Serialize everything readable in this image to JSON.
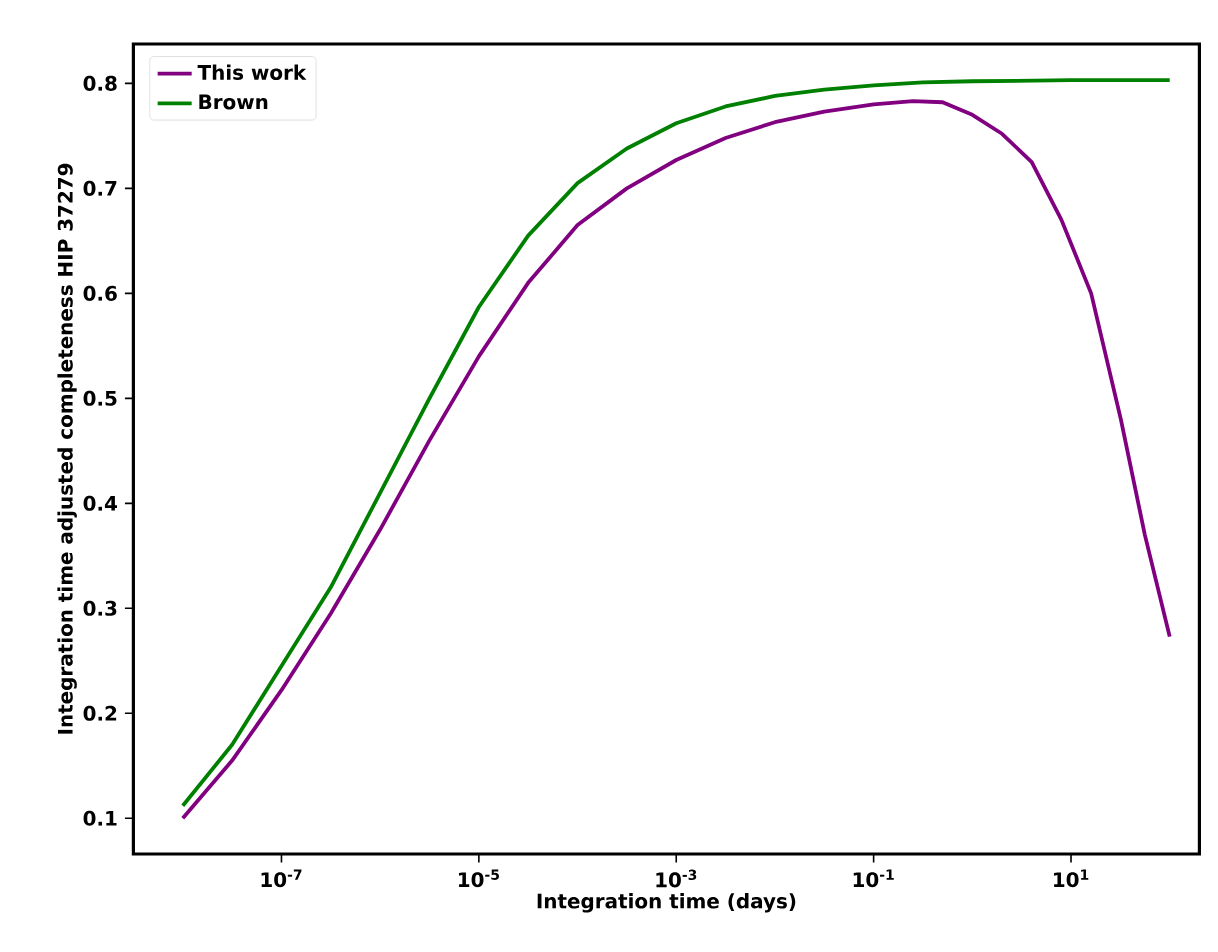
{
  "chart_data": {
    "type": "line",
    "xlabel": "Integration time (days)",
    "ylabel": "Integration time adjusted completeness HIP 37279",
    "log": "x",
    "xlim": [
      3.16e-09,
      200
    ],
    "ylim": [
      0.066,
      0.8375
    ],
    "xticks": [
      {
        "value": 1e-07,
        "label": "10$^{-7}$"
      },
      {
        "value": 1e-05,
        "label": "10$^{-5}$"
      },
      {
        "value": 0.001,
        "label": "10$^{-3}$"
      },
      {
        "value": 0.1,
        "label": "10$^{-1}$"
      },
      {
        "value": 10,
        "label": "10$^{1}$"
      }
    ],
    "yticks": [
      0.1,
      0.2,
      0.3,
      0.4,
      0.5,
      0.6,
      0.7,
      0.8
    ],
    "legend": "top left",
    "grid": false,
    "series": [
      {
        "name": "This work",
        "color": "#800080",
        "x": [
          1e-08,
          3.16e-08,
          1e-07,
          3.16e-07,
          1e-06,
          3.16e-06,
          1e-05,
          3.16e-05,
          0.0001,
          0.000316,
          0.001,
          0.00316,
          0.01,
          0.0316,
          0.1,
          0.25,
          0.5,
          1,
          2,
          4,
          8,
          16,
          32,
          56,
          100
        ],
        "values": [
          0.1,
          0.155,
          0.222,
          0.295,
          0.375,
          0.46,
          0.54,
          0.61,
          0.665,
          0.7,
          0.727,
          0.748,
          0.763,
          0.773,
          0.78,
          0.783,
          0.782,
          0.77,
          0.752,
          0.725,
          0.67,
          0.6,
          0.48,
          0.37,
          0.273
        ]
      },
      {
        "name": "Brown",
        "color": "#008000",
        "x": [
          1e-08,
          3.16e-08,
          1e-07,
          3.16e-07,
          1e-06,
          3.16e-06,
          1e-05,
          3.16e-05,
          0.0001,
          0.000316,
          0.001,
          0.00316,
          0.01,
          0.0316,
          0.1,
          0.316,
          1,
          10,
          100
        ],
        "values": [
          0.112,
          0.17,
          0.245,
          0.32,
          0.41,
          0.5,
          0.587,
          0.655,
          0.705,
          0.738,
          0.762,
          0.778,
          0.788,
          0.794,
          0.798,
          0.801,
          0.802,
          0.803,
          0.803
        ]
      }
    ]
  }
}
